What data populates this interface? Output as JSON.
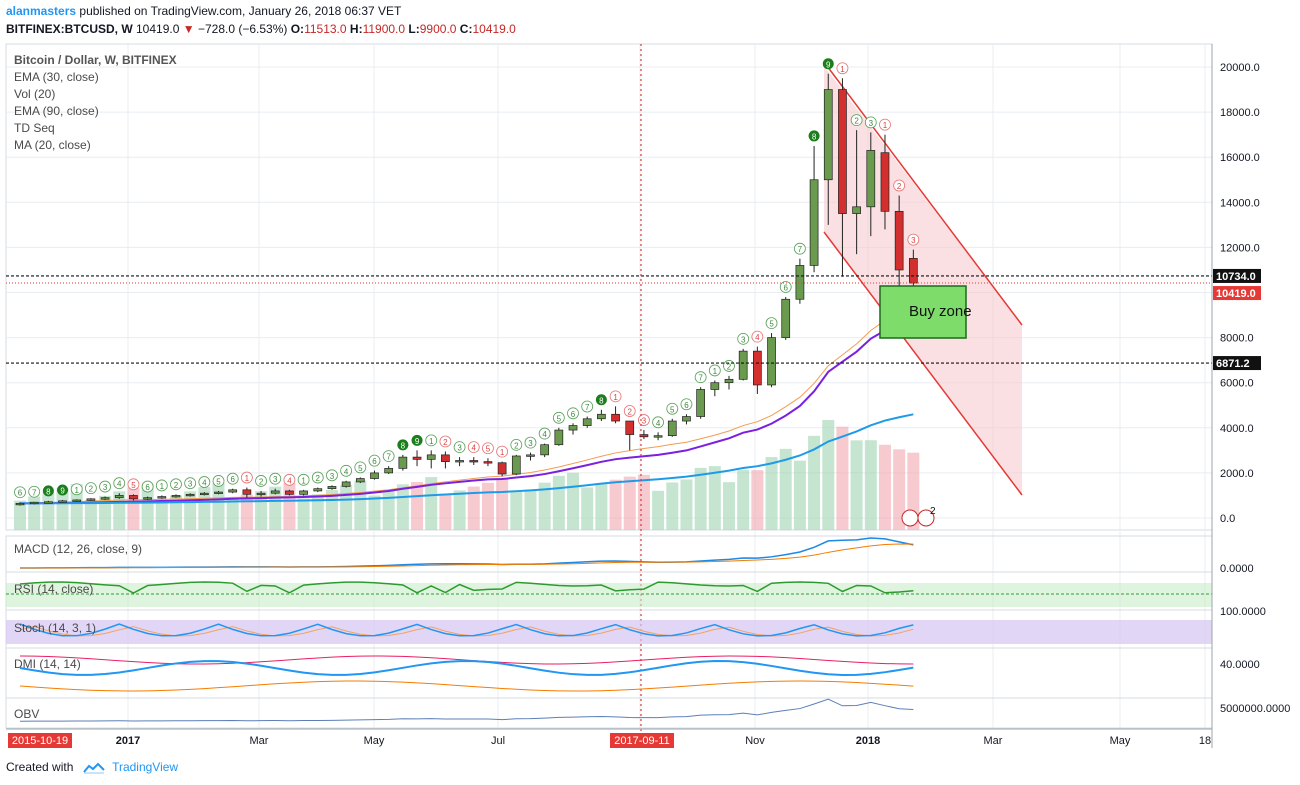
{
  "header": {
    "user": "alanmasters",
    "published_text": "published on TradingView.com, January 26, 2018 06:37 VET",
    "symbol": "BITFINEX:BTCUSD, W",
    "price": "10419.0",
    "change": "−728.0 (−6.53%)",
    "ohlc_labels": {
      "o": "O:",
      "h": "H:",
      "l": "L:",
      "c": "C:"
    },
    "ohlc": {
      "o": "11513.0",
      "h": "11900.0",
      "l": "9900.0",
      "c": "10419.0"
    }
  },
  "legend": {
    "title": "Bitcoin / Dollar, W, BITFINEX",
    "items": [
      "EMA (30, close)",
      "Vol (20)",
      "EMA (90, close)",
      "TD Seq",
      "MA (20, close)"
    ]
  },
  "panes": {
    "macd": "MACD (12, 26, close, 9)",
    "rsi": "RSI (14, close)",
    "stoch": "Stoch (14, 3, 1)",
    "dmi": "DMI (14, 14)",
    "obv": "OBV"
  },
  "pane_scale_labels": {
    "macd": "0.0000",
    "stoch": "100.0000",
    "dmi": "40.0000",
    "obv": "5000000.0000"
  },
  "annotations": {
    "buy_zone": "Buy zone",
    "line_10734": "10734.0",
    "line_last": "10419.0",
    "line_6871": "6871.2",
    "vline_date": "2017-09-11",
    "start_date": "2015-10-19",
    "event_count": "2"
  },
  "colors": {
    "up": "#6a9a4e",
    "down": "#d32f2f",
    "ema30": "#7b1fe0",
    "ema90": "#1e9be8",
    "ma20": "#f39c50",
    "channel": "#e53935",
    "buy_zone_fill": "#7ddc6a",
    "rsi_line": "#2e9b2e",
    "stoch_k": "#2196f3",
    "stoch_d": "#f4a261",
    "dmi_plus": "#2196f3",
    "dmi_minus": "#e91e63",
    "adx": "#f57c00",
    "obv": "#5c7fb8"
  },
  "footer": {
    "created_with": "Created with",
    "brand": "TradingView"
  },
  "chart_data": {
    "type": "candlestick",
    "interval": "W",
    "x_axis_ticks": [
      "2017",
      "Mar",
      "May",
      "Jul",
      "Sep",
      "Nov",
      "2018",
      "Mar",
      "May",
      "18"
    ],
    "y_axis_ticks": [
      "0.0",
      "2000.0",
      "4000.0",
      "6000.0",
      "8000.0",
      "10000.0",
      "12000.0",
      "14000.0",
      "16000.0",
      "18000.0",
      "20000.0"
    ],
    "ylim": [
      -500,
      21000
    ],
    "price_lines": [
      10734.0,
      10419.0,
      6871.2
    ],
    "candles": [
      {
        "o": 600,
        "h": 700,
        "l": 550,
        "c": 650
      },
      {
        "o": 650,
        "h": 720,
        "l": 600,
        "c": 700
      },
      {
        "o": 700,
        "h": 760,
        "l": 650,
        "c": 720
      },
      {
        "o": 720,
        "h": 800,
        "l": 680,
        "c": 760
      },
      {
        "o": 760,
        "h": 830,
        "l": 720,
        "c": 800
      },
      {
        "o": 800,
        "h": 880,
        "l": 760,
        "c": 850
      },
      {
        "o": 850,
        "h": 950,
        "l": 800,
        "c": 900
      },
      {
        "o": 900,
        "h": 1100,
        "l": 850,
        "c": 1000
      },
      {
        "o": 1000,
        "h": 1050,
        "l": 780,
        "c": 850
      },
      {
        "o": 850,
        "h": 950,
        "l": 800,
        "c": 900
      },
      {
        "o": 900,
        "h": 1000,
        "l": 850,
        "c": 950
      },
      {
        "o": 950,
        "h": 1050,
        "l": 900,
        "c": 1000
      },
      {
        "o": 1000,
        "h": 1100,
        "l": 950,
        "c": 1050
      },
      {
        "o": 1050,
        "h": 1150,
        "l": 1000,
        "c": 1100
      },
      {
        "o": 1100,
        "h": 1200,
        "l": 1050,
        "c": 1150
      },
      {
        "o": 1150,
        "h": 1300,
        "l": 1100,
        "c": 1250
      },
      {
        "o": 1250,
        "h": 1350,
        "l": 900,
        "c": 1050
      },
      {
        "o": 1050,
        "h": 1200,
        "l": 950,
        "c": 1100
      },
      {
        "o": 1100,
        "h": 1300,
        "l": 1050,
        "c": 1200
      },
      {
        "o": 1200,
        "h": 1250,
        "l": 1000,
        "c": 1050
      },
      {
        "o": 1050,
        "h": 1250,
        "l": 1000,
        "c": 1200
      },
      {
        "o": 1200,
        "h": 1350,
        "l": 1150,
        "c": 1300
      },
      {
        "o": 1300,
        "h": 1450,
        "l": 1250,
        "c": 1400
      },
      {
        "o": 1400,
        "h": 1650,
        "l": 1350,
        "c": 1600
      },
      {
        "o": 1600,
        "h": 1800,
        "l": 1550,
        "c": 1750
      },
      {
        "o": 1750,
        "h": 2100,
        "l": 1700,
        "c": 2000
      },
      {
        "o": 2000,
        "h": 2300,
        "l": 1950,
        "c": 2200
      },
      {
        "o": 2200,
        "h": 2800,
        "l": 2100,
        "c": 2700
      },
      {
        "o": 2700,
        "h": 3000,
        "l": 2300,
        "c": 2600
      },
      {
        "o": 2600,
        "h": 3000,
        "l": 2200,
        "c": 2800
      },
      {
        "o": 2800,
        "h": 2950,
        "l": 2200,
        "c": 2500
      },
      {
        "o": 2500,
        "h": 2700,
        "l": 2300,
        "c": 2550
      },
      {
        "o": 2550,
        "h": 2700,
        "l": 2350,
        "c": 2500
      },
      {
        "o": 2500,
        "h": 2650,
        "l": 2300,
        "c": 2450
      },
      {
        "o": 2450,
        "h": 2500,
        "l": 1850,
        "c": 1950
      },
      {
        "o": 1950,
        "h": 2800,
        "l": 1900,
        "c": 2750
      },
      {
        "o": 2750,
        "h": 2900,
        "l": 2550,
        "c": 2800
      },
      {
        "o": 2800,
        "h": 3300,
        "l": 2700,
        "c": 3250
      },
      {
        "o": 3250,
        "h": 4000,
        "l": 3200,
        "c": 3900
      },
      {
        "o": 3900,
        "h": 4200,
        "l": 3700,
        "c": 4100
      },
      {
        "o": 4100,
        "h": 4500,
        "l": 4000,
        "c": 4400
      },
      {
        "o": 4400,
        "h": 4800,
        "l": 4300,
        "c": 4600
      },
      {
        "o": 4600,
        "h": 4950,
        "l": 4200,
        "c": 4300
      },
      {
        "o": 4300,
        "h": 4300,
        "l": 3000,
        "c": 3700
      },
      {
        "o": 3700,
        "h": 3900,
        "l": 3500,
        "c": 3600
      },
      {
        "o": 3600,
        "h": 3800,
        "l": 3450,
        "c": 3650
      },
      {
        "o": 3650,
        "h": 4400,
        "l": 3600,
        "c": 4300
      },
      {
        "o": 4300,
        "h": 4600,
        "l": 4150,
        "c": 4500
      },
      {
        "o": 4500,
        "h": 5800,
        "l": 4400,
        "c": 5700
      },
      {
        "o": 5700,
        "h": 6100,
        "l": 5400,
        "c": 6000
      },
      {
        "o": 6000,
        "h": 6300,
        "l": 5700,
        "c": 6150
      },
      {
        "o": 6150,
        "h": 7500,
        "l": 6100,
        "c": 7400
      },
      {
        "o": 7400,
        "h": 7600,
        "l": 5500,
        "c": 5900
      },
      {
        "o": 5900,
        "h": 8200,
        "l": 5800,
        "c": 8000
      },
      {
        "o": 8000,
        "h": 9800,
        "l": 7900,
        "c": 9700
      },
      {
        "o": 9700,
        "h": 11500,
        "l": 9500,
        "c": 11200
      },
      {
        "o": 11200,
        "h": 16500,
        "l": 10900,
        "c": 15000
      },
      {
        "o": 15000,
        "h": 19700,
        "l": 13000,
        "c": 19000
      },
      {
        "o": 19000,
        "h": 19500,
        "l": 10700,
        "c": 13500
      },
      {
        "o": 13500,
        "h": 17200,
        "l": 11700,
        "c": 13800
      },
      {
        "o": 13800,
        "h": 17100,
        "l": 12500,
        "c": 16300
      },
      {
        "o": 16200,
        "h": 17000,
        "l": 12800,
        "c": 13600
      },
      {
        "o": 13600,
        "h": 14300,
        "l": 9000,
        "c": 11000
      },
      {
        "o": 11513,
        "h": 11900,
        "l": 9900,
        "c": 10419
      }
    ]
  }
}
